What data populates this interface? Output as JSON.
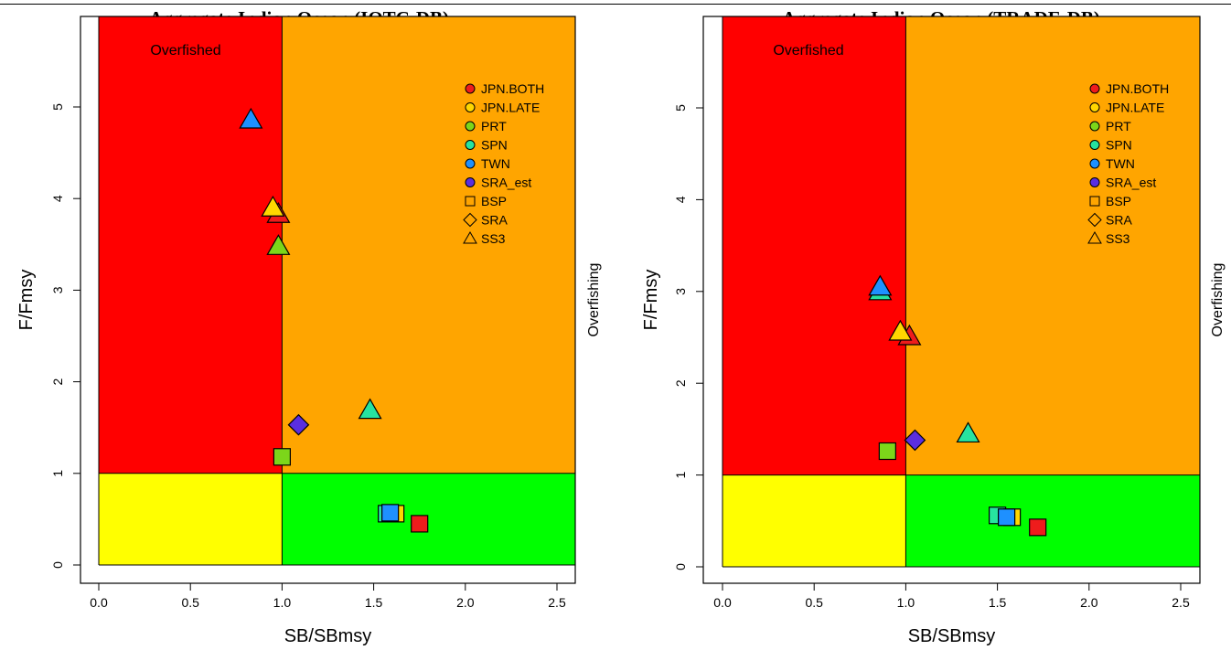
{
  "colors": {
    "overfished": "#ff0000",
    "overfishing_zone": "#ffa500",
    "target_zone": "#00ff00",
    "recovering_zone": "#ffff00",
    "JPN.BOTH": "#ee1c1c",
    "JPN.LATE": "#ffd700",
    "PRT": "#7cd61a",
    "SPN": "#27e3a0",
    "TWN": "#1e90ff",
    "SRA_est": "#5a2ee0"
  },
  "chart_data": [
    {
      "type": "scatter",
      "title": "Aggregate Indian Ocean (IOTC-DB)",
      "xlabel": "SB/SBmsy",
      "ylabel": "F/Fmsy",
      "top_label": "Overfished",
      "right_label": "Overfishing",
      "xlim": [
        0,
        2.5
      ],
      "ylim": [
        0,
        5
      ],
      "x_ticks": [
        "0.0",
        "0.5",
        "1.0",
        "1.5",
        "2.0",
        "2.5"
      ],
      "y_ticks": [
        "0",
        "1",
        "2",
        "3",
        "4",
        "5"
      ],
      "legend_position": "top-right",
      "legend": [
        "JPN.BOTH",
        "JPN.LATE",
        "PRT",
        "SPN",
        "TWN",
        "SRA_est",
        "BSP",
        "SRA",
        "SS3"
      ],
      "points": [
        {
          "series": "TWN",
          "model": "SS3",
          "x": 0.83,
          "y": 4.86
        },
        {
          "series": "JPN.BOTH",
          "model": "SS3",
          "x": 0.98,
          "y": 3.83
        },
        {
          "series": "JPN.LATE",
          "model": "SS3",
          "x": 0.95,
          "y": 3.9
        },
        {
          "series": "PRT",
          "model": "SS3",
          "x": 0.98,
          "y": 3.48
        },
        {
          "series": "SPN",
          "model": "SS3",
          "x": 1.48,
          "y": 1.69
        },
        {
          "series": "SRA_est",
          "model": "SRA",
          "x": 1.09,
          "y": 1.53
        },
        {
          "series": "PRT",
          "model": "BSP",
          "x": 1.0,
          "y": 1.18
        },
        {
          "series": "SPN",
          "model": "BSP",
          "x": 1.57,
          "y": 0.56
        },
        {
          "series": "JPN.LATE",
          "model": "BSP",
          "x": 1.62,
          "y": 0.56
        },
        {
          "series": "TWN",
          "model": "BSP",
          "x": 1.59,
          "y": 0.57
        },
        {
          "series": "JPN.BOTH",
          "model": "BSP",
          "x": 1.75,
          "y": 0.45
        }
      ]
    },
    {
      "type": "scatter",
      "title": "Aggregate Indian Ocean (TRADE-DB)",
      "xlabel": "SB/SBmsy",
      "ylabel": "F/Fmsy",
      "top_label": "Overfished",
      "right_label": "Overfishing",
      "xlim": [
        0,
        2.5
      ],
      "ylim": [
        0,
        5
      ],
      "x_ticks": [
        "0.0",
        "0.5",
        "1.0",
        "1.5",
        "2.0",
        "2.5"
      ],
      "y_ticks": [
        "0",
        "1",
        "2",
        "3",
        "4",
        "5"
      ],
      "legend_position": "top-right",
      "legend": [
        "JPN.BOTH",
        "JPN.LATE",
        "PRT",
        "SPN",
        "TWN",
        "SRA_est",
        "BSP",
        "SRA",
        "SS3"
      ],
      "points": [
        {
          "series": "SPN",
          "model": "SS3",
          "x": 0.86,
          "y": 3.0
        },
        {
          "series": "TWN",
          "model": "SS3",
          "x": 0.86,
          "y": 3.05
        },
        {
          "series": "JPN.BOTH",
          "model": "SS3",
          "x": 1.02,
          "y": 2.51
        },
        {
          "series": "JPN.LATE",
          "model": "SS3",
          "x": 0.97,
          "y": 2.56
        },
        {
          "series": "SPN",
          "model": "SS3",
          "x": 1.34,
          "y": 1.45
        },
        {
          "series": "SRA_est",
          "model": "SRA",
          "x": 1.05,
          "y": 1.38
        },
        {
          "series": "PRT",
          "model": "BSP",
          "x": 0.9,
          "y": 1.26
        },
        {
          "series": "SPN",
          "model": "BSP",
          "x": 1.5,
          "y": 0.56
        },
        {
          "series": "JPN.LATE",
          "model": "BSP",
          "x": 1.58,
          "y": 0.54
        },
        {
          "series": "TWN",
          "model": "BSP",
          "x": 1.55,
          "y": 0.54
        },
        {
          "series": "JPN.BOTH",
          "model": "BSP",
          "x": 1.72,
          "y": 0.43
        }
      ]
    }
  ]
}
